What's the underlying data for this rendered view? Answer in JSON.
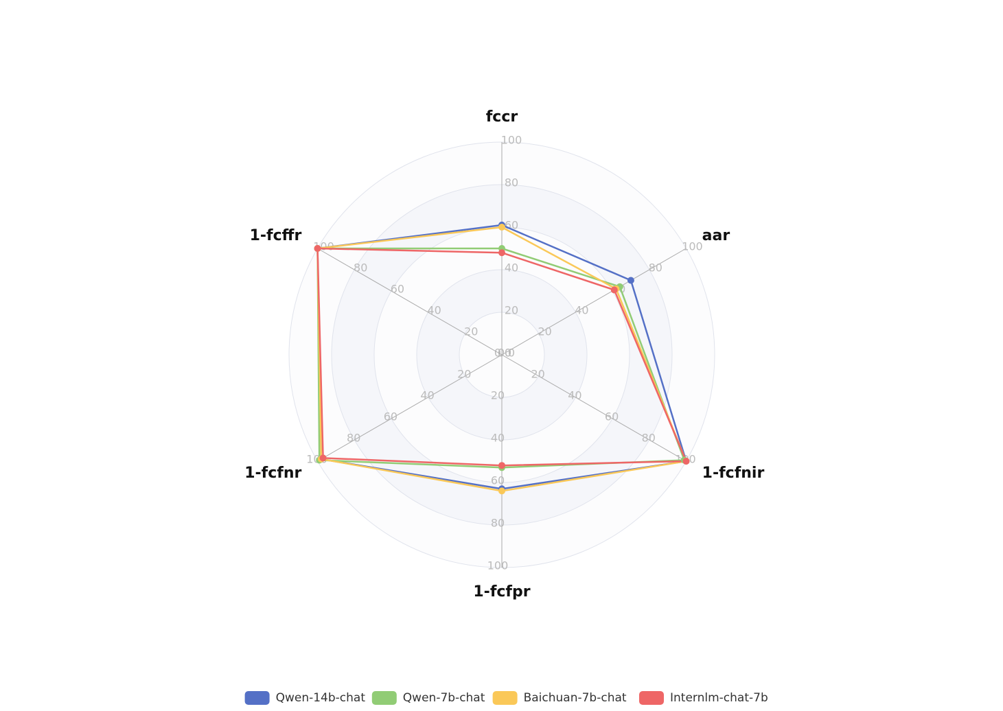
{
  "chart_data": {
    "type": "radar",
    "indicators": [
      "fccr",
      "aar",
      "1-fcfnir",
      "1-fcfpr",
      "1-fcfnr",
      "1-fcffr"
    ],
    "rlim": [
      0,
      100
    ],
    "rticks": [
      0,
      20,
      40,
      60,
      80,
      100
    ],
    "legend": "bottom",
    "series": [
      {
        "name": "Qwen-14b-chat",
        "color": "#5470c6",
        "values": [
          61,
          70,
          100,
          63,
          98,
          100
        ]
      },
      {
        "name": "Qwen-7b-chat",
        "color": "#91cc75",
        "values": [
          50,
          64,
          99,
          53,
          99,
          100
        ]
      },
      {
        "name": "Baichuan-7b-chat",
        "color": "#fac858",
        "values": [
          60,
          62,
          100,
          64,
          98,
          100
        ]
      },
      {
        "name": "Internlm-chat-7b",
        "color": "#ee6666",
        "values": [
          48,
          61,
          100,
          52,
          97,
          100
        ]
      }
    ]
  }
}
